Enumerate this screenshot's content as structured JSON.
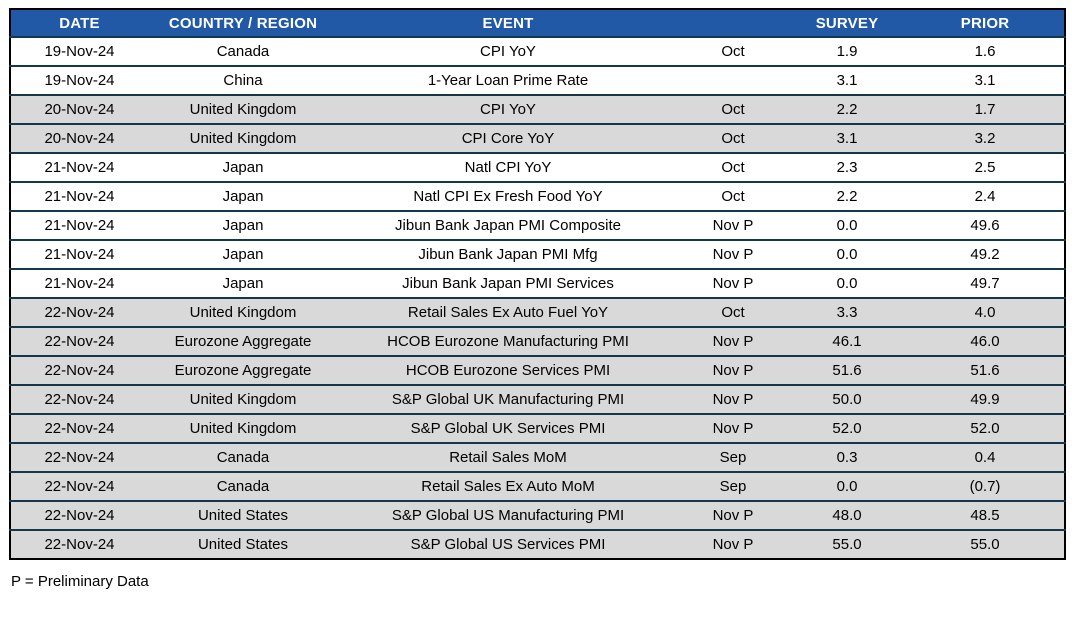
{
  "colors": {
    "header_bg": "#2159A6",
    "header_text": "#FFFFFF",
    "row_bg": "#FFFFFF",
    "row_shaded_bg": "#D9D9D9",
    "row_border": "#13384C",
    "outer_border": "#000000",
    "body_text": "#000000"
  },
  "footnote": "P = Preliminary Data",
  "table": {
    "columns": [
      {
        "key": "date",
        "label": "DATE"
      },
      {
        "key": "country",
        "label": "COUNTRY / REGION"
      },
      {
        "key": "event",
        "label": "EVENT"
      },
      {
        "key": "period",
        "label": ""
      },
      {
        "key": "survey",
        "label": "SURVEY"
      },
      {
        "key": "prior",
        "label": "PRIOR"
      }
    ],
    "rows": [
      {
        "date": "19-Nov-24",
        "country": "Canada",
        "event": "CPI YoY",
        "period": "Oct",
        "survey": "1.9",
        "prior": "1.6",
        "shaded": false
      },
      {
        "date": "19-Nov-24",
        "country": "China",
        "event": "1-Year Loan Prime Rate",
        "period": "",
        "survey": "3.1",
        "prior": "3.1",
        "shaded": false
      },
      {
        "date": "20-Nov-24",
        "country": "United Kingdom",
        "event": "CPI YoY",
        "period": "Oct",
        "survey": "2.2",
        "prior": "1.7",
        "shaded": true
      },
      {
        "date": "20-Nov-24",
        "country": "United Kingdom",
        "event": "CPI Core YoY",
        "period": "Oct",
        "survey": "3.1",
        "prior": "3.2",
        "shaded": true
      },
      {
        "date": "21-Nov-24",
        "country": "Japan",
        "event": "Natl CPI YoY",
        "period": "Oct",
        "survey": "2.3",
        "prior": "2.5",
        "shaded": false
      },
      {
        "date": "21-Nov-24",
        "country": "Japan",
        "event": "Natl CPI Ex Fresh Food YoY",
        "period": "Oct",
        "survey": "2.2",
        "prior": "2.4",
        "shaded": false
      },
      {
        "date": "21-Nov-24",
        "country": "Japan",
        "event": "Jibun Bank Japan PMI Composite",
        "period": "Nov P",
        "survey": "0.0",
        "prior": "49.6",
        "shaded": false
      },
      {
        "date": "21-Nov-24",
        "country": "Japan",
        "event": "Jibun Bank Japan PMI Mfg",
        "period": "Nov P",
        "survey": "0.0",
        "prior": "49.2",
        "shaded": false
      },
      {
        "date": "21-Nov-24",
        "country": "Japan",
        "event": "Jibun Bank Japan PMI Services",
        "period": "Nov P",
        "survey": "0.0",
        "prior": "49.7",
        "shaded": false
      },
      {
        "date": "22-Nov-24",
        "country": "United Kingdom",
        "event": "Retail Sales Ex Auto Fuel YoY",
        "period": "Oct",
        "survey": "3.3",
        "prior": "4.0",
        "shaded": true
      },
      {
        "date": "22-Nov-24",
        "country": "Eurozone Aggregate",
        "event": "HCOB Eurozone Manufacturing PMI",
        "period": "Nov P",
        "survey": "46.1",
        "prior": "46.0",
        "shaded": true
      },
      {
        "date": "22-Nov-24",
        "country": "Eurozone Aggregate",
        "event": "HCOB Eurozone Services PMI",
        "period": "Nov P",
        "survey": "51.6",
        "prior": "51.6",
        "shaded": true
      },
      {
        "date": "22-Nov-24",
        "country": "United Kingdom",
        "event": "S&P Global UK Manufacturing PMI",
        "period": "Nov P",
        "survey": "50.0",
        "prior": "49.9",
        "shaded": true
      },
      {
        "date": "22-Nov-24",
        "country": "United Kingdom",
        "event": "S&P Global UK Services PMI",
        "period": "Nov P",
        "survey": "52.0",
        "prior": "52.0",
        "shaded": true
      },
      {
        "date": "22-Nov-24",
        "country": "Canada",
        "event": "Retail Sales MoM",
        "period": "Sep",
        "survey": "0.3",
        "prior": "0.4",
        "shaded": true
      },
      {
        "date": "22-Nov-24",
        "country": "Canada",
        "event": "Retail Sales Ex Auto MoM",
        "period": "Sep",
        "survey": "0.0",
        "prior": "(0.7)",
        "shaded": true
      },
      {
        "date": "22-Nov-24",
        "country": "United States",
        "event": "S&P Global US Manufacturing PMI",
        "period": "Nov P",
        "survey": "48.0",
        "prior": "48.5",
        "shaded": true
      },
      {
        "date": "22-Nov-24",
        "country": "United States",
        "event": "S&P Global US Services PMI",
        "period": "Nov P",
        "survey": "55.0",
        "prior": "55.0",
        "shaded": true
      }
    ]
  }
}
